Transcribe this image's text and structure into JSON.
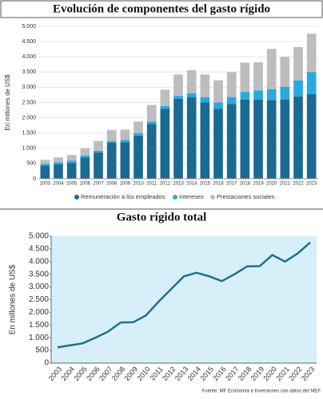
{
  "chart_data": [
    {
      "type": "bar",
      "stacked": true,
      "title": "Evolución de componentes del gasto rígido",
      "ylabel": "En millones de US$",
      "categories": [
        "2003",
        "2004",
        "2005",
        "2006",
        "2007",
        "2008",
        "2009",
        "2010",
        "2011",
        "2012",
        "2013",
        "2014",
        "2015",
        "2016",
        "2017",
        "2018",
        "2019",
        "2020",
        "2021",
        "2022",
        "2023"
      ],
      "series": [
        {
          "name": "Remuneración a los empleados",
          "color": "#1a6a94",
          "values": [
            430,
            470,
            520,
            700,
            860,
            1180,
            1200,
            1420,
            1800,
            2300,
            2620,
            2680,
            2500,
            2300,
            2450,
            2600,
            2600,
            2580,
            2600,
            2700,
            2780
          ]
        },
        {
          "name": "Intereses",
          "color": "#29a9e0",
          "values": [
            60,
            70,
            70,
            60,
            60,
            60,
            70,
            80,
            80,
            90,
            100,
            120,
            170,
            200,
            230,
            250,
            300,
            360,
            420,
            530,
            720
          ]
        },
        {
          "name": "Prestaciones sociales",
          "color": "#bdbdbd",
          "values": [
            130,
            160,
            190,
            240,
            320,
            360,
            340,
            380,
            540,
            530,
            700,
            760,
            750,
            730,
            820,
            960,
            920,
            1320,
            980,
            1090,
            1260
          ]
        }
      ],
      "ylim": [
        0,
        5000
      ],
      "yticks": [
        0,
        500,
        {
          "value": 1000,
          "label": "1.000"
        },
        {
          "value": 1500,
          "label": "1.500"
        },
        {
          "value": 2000,
          "label": "2.000"
        },
        {
          "value": 2500,
          "label": "2.500"
        },
        {
          "value": 3000,
          "label": "3.000"
        },
        {
          "value": 3500,
          "label": "3.500"
        },
        {
          "value": 4000,
          "label": "4.000"
        },
        {
          "value": 4500,
          "label": "4.500"
        },
        {
          "value": 5000,
          "label": "5.000"
        }
      ],
      "grid": true
    },
    {
      "type": "line",
      "title": "Gasto rígido total",
      "ylabel": "En millones de US$",
      "color": "#1f6f8f",
      "categories": [
        "2003",
        "2004",
        "2005",
        "2006",
        "2007",
        "2008",
        "2009",
        "2010",
        "2011",
        "2012",
        "2013",
        "2014",
        "2015",
        "2016",
        "2017",
        "2018",
        "2019",
        "2020",
        "2021",
        "2022",
        "2023"
      ],
      "values": [
        620,
        700,
        780,
        1000,
        1240,
        1600,
        1610,
        1880,
        2420,
        2920,
        3420,
        3560,
        3420,
        3230,
        3500,
        3810,
        3820,
        4260,
        4000,
        4320,
        4760
      ],
      "ylim": [
        0,
        5000
      ],
      "yticks": [
        0,
        500,
        {
          "value": 1000,
          "label": "1.000"
        },
        {
          "value": 1500,
          "label": "1.500"
        },
        {
          "value": 2000,
          "label": "2.000"
        },
        {
          "value": 2500,
          "label": "2.500"
        },
        {
          "value": 3000,
          "label": "3.000"
        },
        {
          "value": 3500,
          "label": "3.500"
        },
        {
          "value": 4000,
          "label": "4.000"
        },
        {
          "value": 4500,
          "label": "4.500"
        },
        {
          "value": 5000,
          "label": "5.000"
        }
      ],
      "grid": false,
      "source": "Fuente: MF Economía e Inversiones con datos del MEF"
    }
  ]
}
